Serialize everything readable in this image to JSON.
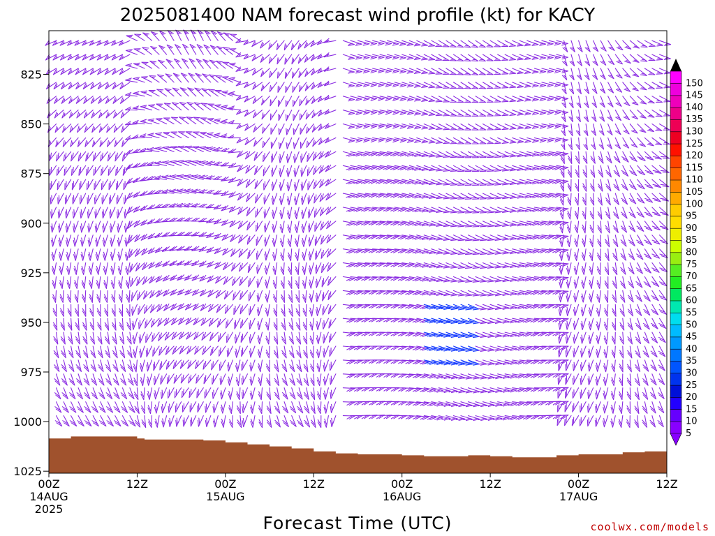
{
  "chart_data": {
    "type": "wind-barb-profile",
    "title": "2025081400 NAM forecast wind profile (kt) for KACY",
    "xlabel": "Forecast Time (UTC)",
    "ylabel": "",
    "y_axis": {
      "reversed": true,
      "range": [
        803,
        1026
      ],
      "ticks": [
        825,
        850,
        875,
        900,
        925,
        950,
        975,
        1000,
        1025
      ]
    },
    "x_axis": {
      "range_hours": [
        0,
        84
      ],
      "ticks": [
        {
          "hour": 0,
          "line1": "00Z",
          "line2": "14AUG",
          "line3": "2025"
        },
        {
          "hour": 12,
          "line1": "12Z",
          "line2": "",
          "line3": ""
        },
        {
          "hour": 24,
          "line1": "00Z",
          "line2": "15AUG",
          "line3": ""
        },
        {
          "hour": 36,
          "line1": "12Z",
          "line2": "",
          "line3": ""
        },
        {
          "hour": 48,
          "line1": "00Z",
          "line2": "16AUG",
          "line3": ""
        },
        {
          "hour": 60,
          "line1": "12Z",
          "line2": "",
          "line3": ""
        },
        {
          "hour": 72,
          "line1": "00Z",
          "line2": "17AUG",
          "line3": ""
        },
        {
          "hour": 84,
          "line1": "12Z",
          "line2": "",
          "line3": ""
        }
      ]
    },
    "surface_pressure": {
      "color": "#a0522d",
      "hours": [
        0,
        3,
        6,
        9,
        11,
        12,
        13,
        15,
        18,
        21,
        24,
        27,
        30,
        33,
        36,
        39,
        42,
        45,
        48,
        51,
        54,
        57,
        60,
        63,
        66,
        69,
        72,
        75,
        78,
        81,
        84
      ],
      "values": [
        1008.5,
        1007.5,
        1007.5,
        1007.5,
        1007.5,
        1008.5,
        1009,
        1009,
        1009,
        1009.5,
        1010.5,
        1011.5,
        1012.5,
        1013.5,
        1015,
        1016,
        1016.5,
        1016.5,
        1017,
        1017.5,
        1017.5,
        1017,
        1017.5,
        1018,
        1018,
        1017,
        1016.5,
        1016.5,
        1015.5,
        1015,
        1014.5
      ]
    },
    "wind_barbs": {
      "color": "#8a2be2",
      "strong_color": "#1a3fff",
      "time_step_hours": 1,
      "level_spacing_hpa": 7,
      "top_level_hpa": 808,
      "bottom_level_hpa": 1003
    },
    "colorbar": {
      "labels": [
        "5",
        "10",
        "15",
        "20",
        "25",
        "30",
        "35",
        "40",
        "45",
        "50",
        "55",
        "60",
        "65",
        "70",
        "75",
        "80",
        "85",
        "90",
        "95",
        "100",
        "105",
        "110",
        "115",
        "120",
        "125",
        "130",
        "135",
        "140",
        "145",
        "150"
      ],
      "colors": [
        "#8800ff",
        "#6600ff",
        "#2200ff",
        "#0010d8",
        "#0033ee",
        "#0055ff",
        "#0077ff",
        "#0099ff",
        "#00bbff",
        "#00ddee",
        "#00e8b0",
        "#00e860",
        "#22ee22",
        "#55ee22",
        "#99ee11",
        "#ccff00",
        "#eeee00",
        "#ffdd00",
        "#ffcc00",
        "#ffaa00",
        "#ff8800",
        "#ff6600",
        "#ff4400",
        "#ff1100",
        "#ee0022",
        "#ee0055",
        "#ee0088",
        "#ee00bb",
        "#ee00dd",
        "#ff00ff"
      ]
    },
    "credit": "coolwx.com/models"
  }
}
